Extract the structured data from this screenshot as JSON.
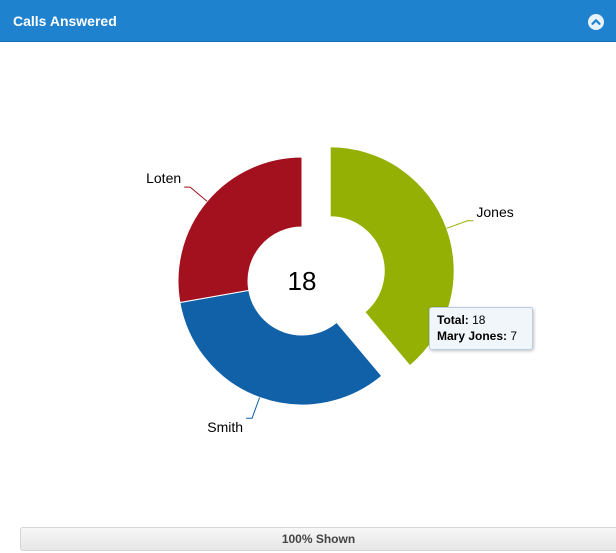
{
  "header": {
    "title": "Calls Answered",
    "collapse_icon": "chevron-up-circle-icon"
  },
  "colors": {
    "header": "#1f82cf",
    "jones": "#95b004",
    "smith": "#1061a8",
    "loten": "#a3111f"
  },
  "chart_data": {
    "type": "pie",
    "variant": "donut",
    "center_value": "18",
    "slices": [
      {
        "label": "Jones",
        "value": 7,
        "color": "#95b004",
        "exploded": true
      },
      {
        "label": "Smith",
        "value": 6,
        "color": "#1061a8",
        "exploded": false
      },
      {
        "label": "Loten",
        "value": 5,
        "color": "#a3111f",
        "exploded": false
      }
    ]
  },
  "tooltip": {
    "total_label": "Total:",
    "total_value": "18",
    "series_label": "Mary Jones:",
    "series_value": "7"
  },
  "footer": {
    "shown_text": "100% Shown"
  }
}
